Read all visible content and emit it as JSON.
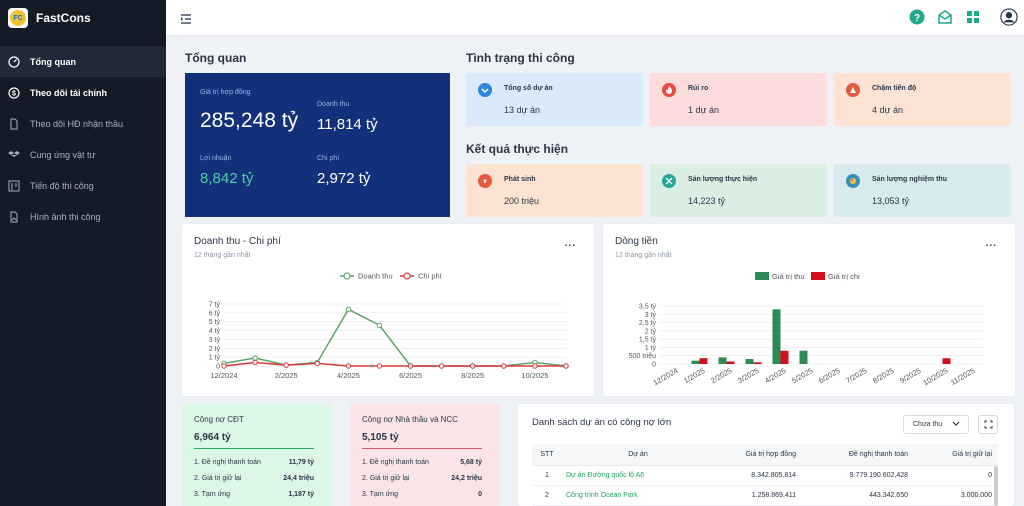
{
  "app": {
    "name": "FastCons",
    "logo_text": "FC"
  },
  "sidebar": {
    "items": [
      {
        "label": "Tổng quan"
      },
      {
        "label": "Theo dõi tài chính"
      },
      {
        "label": "Theo dõi HĐ nhận thầu"
      },
      {
        "label": "Cung ứng vật tư"
      },
      {
        "label": "Tiến độ thi công"
      },
      {
        "label": "Hình ảnh thi công"
      }
    ]
  },
  "overview": {
    "title": "Tổng quan",
    "contract_label": "Giá trị hợp đồng",
    "contract_value": "285,248 tỷ",
    "revenue_label": "Doanh thu",
    "revenue_value": "11,814 tỷ",
    "profit_label": "Lợi nhuận",
    "profit_value": "8,842 tỷ",
    "cost_label": "Chi phí",
    "cost_value": "2,972 tỷ"
  },
  "status": {
    "title": "Tình trạng thi công",
    "cards": [
      {
        "label": "Tổng số dự án",
        "value": "13 dự án",
        "color": "#dbeafa",
        "icon_color": "#2e86de"
      },
      {
        "label": "Rủi ro",
        "value": "1 dự án",
        "color": "#fddcdc",
        "icon_color": "#e74c3c"
      },
      {
        "label": "Chậm tiến độ",
        "value": "4 dự án",
        "color": "#fde2d6",
        "icon_color": "#e05a44"
      }
    ]
  },
  "results": {
    "title": "Kết quả thực hiện",
    "cards": [
      {
        "label": "Phát sinh",
        "value": "200 triệu",
        "color": "#fde4d2",
        "icon_color": "#e9573f"
      },
      {
        "label": "Sản lượng thực hiện",
        "value": "14,223 tỷ",
        "color": "#dbeee4",
        "icon_color": "#26a69a"
      },
      {
        "label": "Sản lượng nghiệm thu",
        "value": "13,053 tỷ",
        "color": "#d7ebee",
        "icon_color": "#3c8dbc"
      }
    ]
  },
  "revenue_chart": {
    "title": "Doanh thu - Chi phí",
    "subtitle": "12 tháng gần nhất",
    "menu": "..."
  },
  "cashflow_chart": {
    "title": "Dòng tiền",
    "subtitle": "12 tháng gần nhất",
    "menu": "..."
  },
  "chart_data": [
    {
      "type": "line",
      "title": "Doanh thu - Chi phí",
      "x": [
        "12/2024",
        "1/2025",
        "2/2025",
        "3/2025",
        "4/2025",
        "5/2025",
        "6/2025",
        "7/2025",
        "8/2025",
        "9/2025",
        "10/2025",
        "11/2025"
      ],
      "x_tick_labels": [
        "12/2024",
        "2/2025",
        "4/2025",
        "6/2025",
        "8/2025",
        "10/2025"
      ],
      "y_tick_labels": [
        "0",
        "1 tỷ",
        "2 tỷ",
        "3 tỷ",
        "4 tỷ",
        "5 tỷ",
        "6 tỷ",
        "7 tỷ"
      ],
      "ylim": [
        0,
        7
      ],
      "legend_position": "top-center",
      "series": [
        {
          "name": "Doanh thu",
          "color": "#5aa469",
          "values": [
            0.3,
            0.9,
            0.1,
            0.4,
            6.4,
            4.6,
            0,
            0,
            0,
            0,
            0.4,
            0
          ]
        },
        {
          "name": "Chi phí",
          "color": "#d9383a",
          "values": [
            0,
            0.4,
            0.1,
            0.3,
            0,
            0,
            0,
            0,
            0,
            0,
            0,
            0
          ]
        }
      ]
    },
    {
      "type": "bar",
      "title": "Dòng tiền",
      "categories": [
        "12/2024",
        "1/2025",
        "2/2025",
        "3/2025",
        "4/2025",
        "5/2025",
        "6/2025",
        "7/2025",
        "8/2025",
        "9/2025",
        "10/2025",
        "11/2025"
      ],
      "y_tick_labels": [
        "0",
        "500 triệu",
        "1 tỷ",
        "1,5 tỷ",
        "2 tỷ",
        "2,5 tỷ",
        "3 tỷ",
        "3,5 tỷ"
      ],
      "ylim": [
        0,
        3.5
      ],
      "legend_position": "top-center",
      "series": [
        {
          "name": "Giá trị thu",
          "color": "#2e8b57",
          "values": [
            0,
            0.2,
            0.4,
            0.3,
            3.3,
            0.8,
            0,
            0,
            0,
            0,
            0,
            0
          ]
        },
        {
          "name": "Giá trị chi",
          "color": "#d0101b",
          "values": [
            0,
            0.35,
            0.15,
            0.1,
            0.8,
            0,
            0,
            0,
            0,
            0,
            0.35,
            0
          ]
        }
      ]
    }
  ],
  "debts": [
    {
      "title": "Công nợ CĐT",
      "total": "6,964 tỷ",
      "bg": "#dcf7e6",
      "line": "#27ae60",
      "rows": [
        {
          "label": "1. Đề nghị thanh toán",
          "value": "11,79 tỷ"
        },
        {
          "label": "2. Giá trị giữ lại",
          "value": "24,4 triệu"
        },
        {
          "label": "3. Tạm ứng",
          "value": "1,187 tỷ"
        }
      ]
    },
    {
      "title": "Công nợ Nhà thầu và NCC",
      "total": "5,105 tỷ",
      "bg": "#fbe4e7",
      "line": "#e05570",
      "rows": [
        {
          "label": "1. Đề nghị thanh toán",
          "value": "5,68 tỷ"
        },
        {
          "label": "2. Giá trị giữ lại",
          "value": "24,2 triệu"
        },
        {
          "label": "3. Tạm ứng",
          "value": "0"
        }
      ]
    }
  ],
  "projects_table": {
    "title": "Danh sách dự án có công nợ lớn",
    "filter_value": "Chưa thu",
    "columns": [
      "STT",
      "Dự án",
      "Giá trị hợp đồng",
      "Đề nghị thanh toán",
      "Giá trị giữ lại"
    ],
    "rows": [
      [
        "1",
        "Dự án Đường quốc lộ A6",
        "8.342.805.814",
        "9.779.190.602,428",
        "0"
      ],
      [
        "2",
        "Công trình Ocean Park",
        "1.258.869.411",
        "443.342.650",
        "3.000.000"
      ]
    ]
  }
}
